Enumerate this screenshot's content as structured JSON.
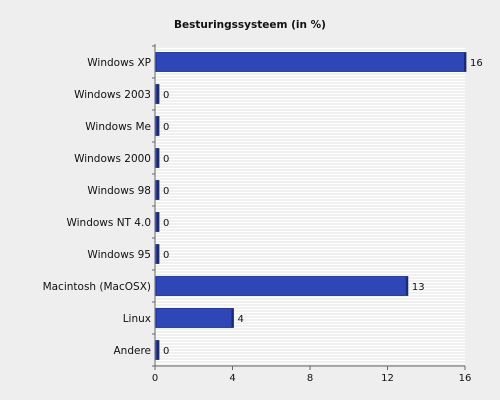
{
  "chart_data": {
    "type": "bar",
    "orientation": "horizontal",
    "title": "Besturingssysteem (in %)",
    "categories": [
      "Windows XP",
      "Windows 2003",
      "Windows Me",
      "Windows 2000",
      "Windows 98",
      "Windows NT 4.0",
      "Windows 95",
      "Macintosh (MacOSX)",
      "Linux",
      "Andere"
    ],
    "values": [
      16,
      0,
      0,
      0,
      0,
      0,
      0,
      13,
      4,
      0
    ],
    "value_labels": [
      "16",
      "0",
      "0",
      "0",
      "0",
      "0",
      "0",
      "13",
      "4",
      "0"
    ],
    "xlim": [
      0,
      16
    ],
    "x_ticks": [
      "0",
      "4",
      "8",
      "12",
      "16"
    ],
    "xlabel": "",
    "ylabel": "",
    "grid": "horizontal stripes",
    "legend": "none",
    "colors": {
      "bar": "#2e46b8",
      "bar_edge": "#1a2a7a",
      "background": "#eeeeee",
      "plot_background": "#ffffff",
      "stripe": "#e2e2e2",
      "axis": "#666666"
    }
  }
}
